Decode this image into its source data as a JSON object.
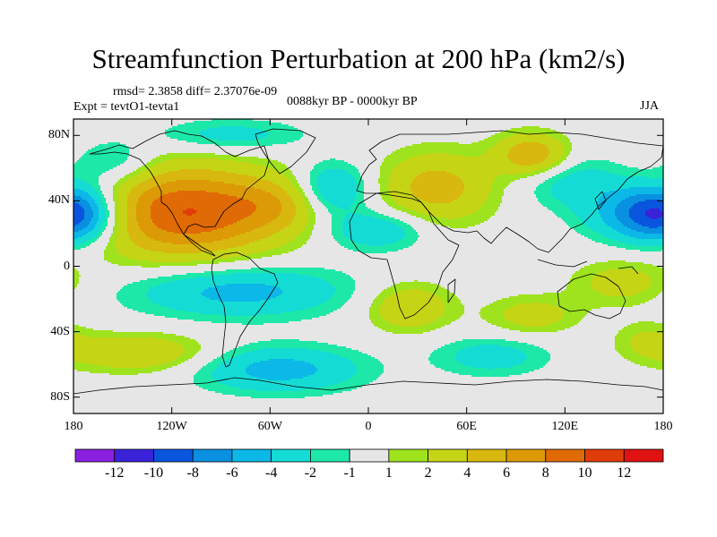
{
  "title": "Streamfunction Perturbation at 200 hPa (km2/s)",
  "stats_text": "rmsd= 2.3858 diff= 2.37076e-09",
  "experiment_text": "Expt = tevtO1-tevta1",
  "period_text": "0088kyr BP - 0000kyr BP",
  "season": "JJA",
  "map": {
    "projection": "cylindrical equidistant",
    "lon_range": [
      -180,
      180
    ],
    "lat_range": [
      -90,
      90
    ],
    "lat_ticks": [
      {
        "lat": 80,
        "label": "80N"
      },
      {
        "lat": 40,
        "label": "40N"
      },
      {
        "lat": 0,
        "label": "0"
      },
      {
        "lat": -40,
        "label": "40S"
      },
      {
        "lat": -80,
        "label": "80S"
      }
    ],
    "lon_ticks": [
      {
        "lon": -180,
        "label": "180"
      },
      {
        "lon": -120,
        "label": "120W"
      },
      {
        "lon": -60,
        "label": "60W"
      },
      {
        "lon": 0,
        "label": "0"
      },
      {
        "lon": 60,
        "label": "60E"
      },
      {
        "lon": 120,
        "label": "120E"
      },
      {
        "lon": 180,
        "label": "180"
      }
    ],
    "field_features": [
      {
        "name": "north-america-high",
        "lon": -112,
        "lat": 33,
        "rlon": 58,
        "rlat": 28,
        "amp": 10
      },
      {
        "name": "north-atlantic-high",
        "lon": -55,
        "lat": 38,
        "rlon": 30,
        "rlat": 16,
        "amp": 3
      },
      {
        "name": "pacific-west-low",
        "lon": -178,
        "lat": 32,
        "rlon": 24,
        "rlat": 18,
        "amp": -6
      },
      {
        "name": "central-pacific-low",
        "lon": -155,
        "lat": 63,
        "rlon": 25,
        "rlat": 14,
        "amp": -3
      },
      {
        "name": "greenland-low",
        "lon": -85,
        "lat": 80,
        "rlon": 45,
        "rlat": 10,
        "amp": -3
      },
      {
        "name": "atlantic-low",
        "lon": -22,
        "lat": 47,
        "rlon": 22,
        "rlat": 16,
        "amp": -5
      },
      {
        "name": "europe-high",
        "lon": 42,
        "lat": 48,
        "rlon": 35,
        "rlat": 22,
        "amp": 5
      },
      {
        "name": "siberia-high",
        "lon": 100,
        "lat": 68,
        "rlon": 22,
        "rlat": 13,
        "amp": 6
      },
      {
        "name": "east-asia-low",
        "lon": 125,
        "lat": 52,
        "rlon": 32,
        "rlat": 16,
        "amp": -3
      },
      {
        "name": "west-pacific-low",
        "lon": 170,
        "lat": 32,
        "rlon": 35,
        "rlat": 17,
        "amp": -7
      },
      {
        "name": "africa-low",
        "lon": 5,
        "lat": 22,
        "rlon": 30,
        "rlat": 12,
        "amp": -4
      },
      {
        "name": "tropical-pacific-low",
        "lon": -80,
        "lat": -15,
        "rlon": 65,
        "rlat": 16,
        "amp": -5
      },
      {
        "name": "southern-africa-high",
        "lon": 25,
        "lat": -25,
        "rlon": 26,
        "rlat": 15,
        "amp": 4
      },
      {
        "name": "south-indian-high",
        "lon": 100,
        "lat": -30,
        "rlon": 28,
        "rlat": 12,
        "amp": 3
      },
      {
        "name": "southwest-pacific-high",
        "lon": -140,
        "lat": -53,
        "rlon": 45,
        "rlat": 12,
        "amp": 4
      },
      {
        "name": "south-atlantic-low",
        "lon": -55,
        "lat": -63,
        "rlon": 50,
        "rlat": 14,
        "amp": -5
      },
      {
        "name": "south-indian-low",
        "lon": 75,
        "lat": -55,
        "rlon": 35,
        "rlat": 12,
        "amp": -3
      },
      {
        "name": "australia-high",
        "lon": 155,
        "lat": -10,
        "rlon": 30,
        "rlat": 14,
        "amp": 3
      },
      {
        "name": "southern-ocean-high",
        "lon": 170,
        "lat": -45,
        "rlon": 20,
        "rlat": 12,
        "amp": 2
      }
    ]
  },
  "colorbar": {
    "colors": [
      "#8a1fe0",
      "#3a22d8",
      "#0a55de",
      "#0990e0",
      "#0cb8e8",
      "#14dcd4",
      "#1ee8a8",
      "#e6e6e6",
      "#9ee31e",
      "#c6d416",
      "#d8b80e",
      "#dc9a06",
      "#e06a06",
      "#e03c0a",
      "#e01212"
    ],
    "labels": [
      "-12",
      "-10",
      "-8",
      "-6",
      "-4",
      "-2",
      "-1",
      "1",
      "2",
      "4",
      "6",
      "8",
      "10",
      "12"
    ]
  }
}
